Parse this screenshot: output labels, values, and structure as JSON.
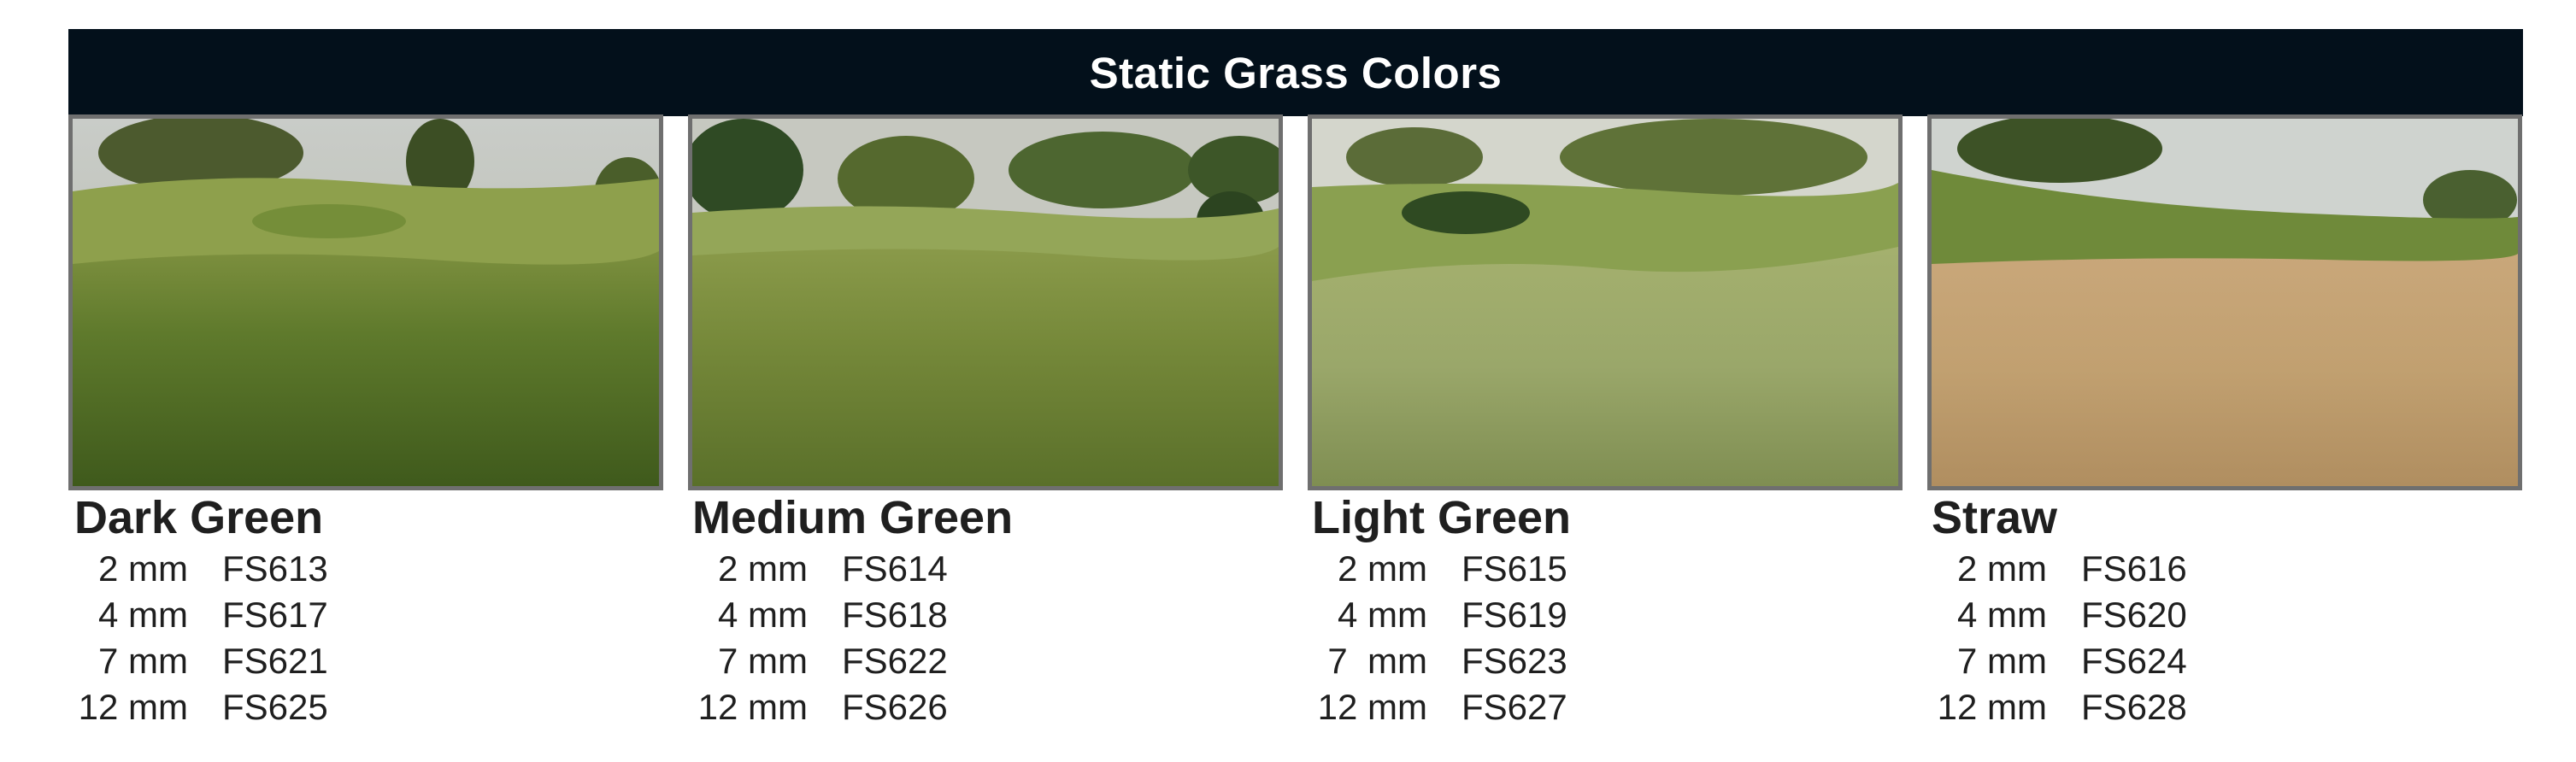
{
  "title": "Static Grass Colors",
  "colors": {
    "banner_bg": "#03101b",
    "frame": "#6f6f6f"
  },
  "products": [
    {
      "name": "Dark Green",
      "image": "dark-green-grass-photo",
      "sizes": [
        {
          "size": "2 mm",
          "code": "FS613"
        },
        {
          "size": "4 mm",
          "code": "FS617"
        },
        {
          "size": "7 mm",
          "code": "FS621"
        },
        {
          "size": "12 mm",
          "code": "FS625"
        }
      ]
    },
    {
      "name": "Medium Green",
      "image": "medium-green-grass-photo",
      "sizes": [
        {
          "size": "2 mm",
          "code": "FS614"
        },
        {
          "size": "4 mm",
          "code": "FS618"
        },
        {
          "size": "7 mm",
          "code": "FS622"
        },
        {
          "size": "12 mm",
          "code": "FS626"
        }
      ]
    },
    {
      "name": "Light Green",
      "image": "light-green-grass-photo",
      "sizes": [
        {
          "size": "2 mm",
          "code": "FS615"
        },
        {
          "size": "4 mm",
          "code": "FS619"
        },
        {
          "size": "7  mm",
          "code": "FS623"
        },
        {
          "size": "12 mm",
          "code": "FS627"
        }
      ]
    },
    {
      "name": "Straw",
      "image": "straw-grass-photo",
      "sizes": [
        {
          "size": "2 mm",
          "code": "FS616"
        },
        {
          "size": "4 mm",
          "code": "FS620"
        },
        {
          "size": "7 mm",
          "code": "FS624"
        },
        {
          "size": "12 mm",
          "code": "FS628"
        }
      ]
    }
  ]
}
